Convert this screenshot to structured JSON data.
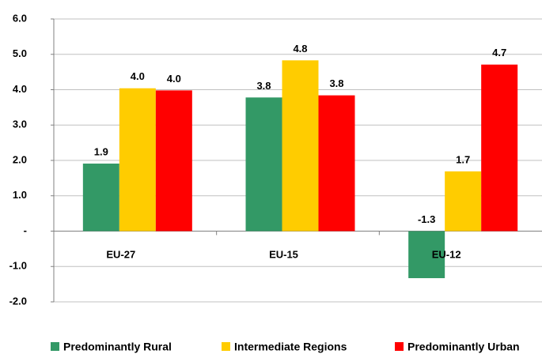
{
  "chart_data": {
    "type": "bar",
    "categories": [
      "EU-27",
      "EU-15",
      "EU-12"
    ],
    "series": [
      {
        "name": "Predominantly Rural",
        "color": "#339966",
        "values": [
          1.91,
          3.78,
          -1.33
        ],
        "value_labels": [
          "1.9",
          "3.8",
          "-1.3"
        ]
      },
      {
        "name": "Intermediate Regions",
        "color": "#ffcc00",
        "values": [
          4.04,
          4.83,
          1.69
        ],
        "value_labels": [
          "4.0",
          "4.8",
          "1.7"
        ]
      },
      {
        "name": "Predominantly Urban",
        "color": "#ff0000",
        "values": [
          3.98,
          3.84,
          4.71
        ],
        "value_labels": [
          "4.0",
          "3.8",
          "4.7"
        ]
      }
    ],
    "ylim": [
      -2,
      6
    ],
    "yticks": [
      {
        "value": -2,
        "label": "-2.0"
      },
      {
        "value": -1,
        "label": "-1.0"
      },
      {
        "value": 0,
        "label": "-"
      },
      {
        "value": 1,
        "label": "1.0"
      },
      {
        "value": 2,
        "label": "2.0"
      },
      {
        "value": 3,
        "label": "3.0"
      },
      {
        "value": 4,
        "label": "4.0"
      },
      {
        "value": 5,
        "label": "5.0"
      },
      {
        "value": 6,
        "label": "6.0"
      }
    ],
    "grid": true,
    "legend": "bottom"
  }
}
